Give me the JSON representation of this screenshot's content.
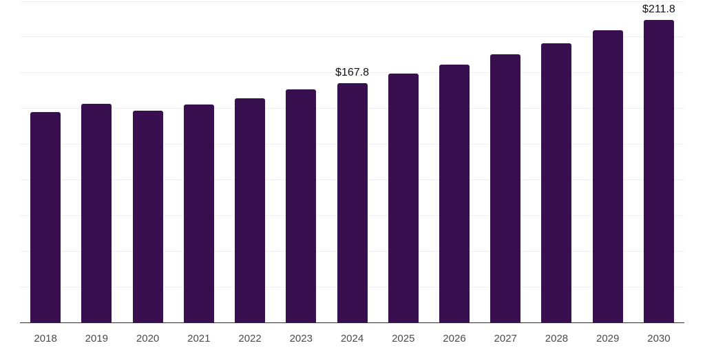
{
  "chart_data": {
    "type": "bar",
    "title": "",
    "xlabel": "",
    "ylabel": "",
    "categories": [
      "2018",
      "2019",
      "2020",
      "2021",
      "2022",
      "2023",
      "2024",
      "2025",
      "2026",
      "2027",
      "2028",
      "2029",
      "2030"
    ],
    "values": [
      147.2,
      153.3,
      148.5,
      152.9,
      157.3,
      163.2,
      167.8,
      174.2,
      180.8,
      188.0,
      195.4,
      204.6,
      211.8
    ],
    "point_labels": [
      "",
      "",
      "",
      "",
      "",
      "",
      "$167.8",
      "",
      "",
      "",
      "",
      "",
      "$211.8"
    ],
    "ylim": [
      0,
      225
    ],
    "grid_interval": 25,
    "grid": "on",
    "legend": "none",
    "colors": {
      "bar": "#38104F",
      "axis_line": "#2e2e2e",
      "gridline": "#efefef",
      "tick_label": "#4a4a4a",
      "value_label": "#111111",
      "background": "#ffffff"
    }
  }
}
